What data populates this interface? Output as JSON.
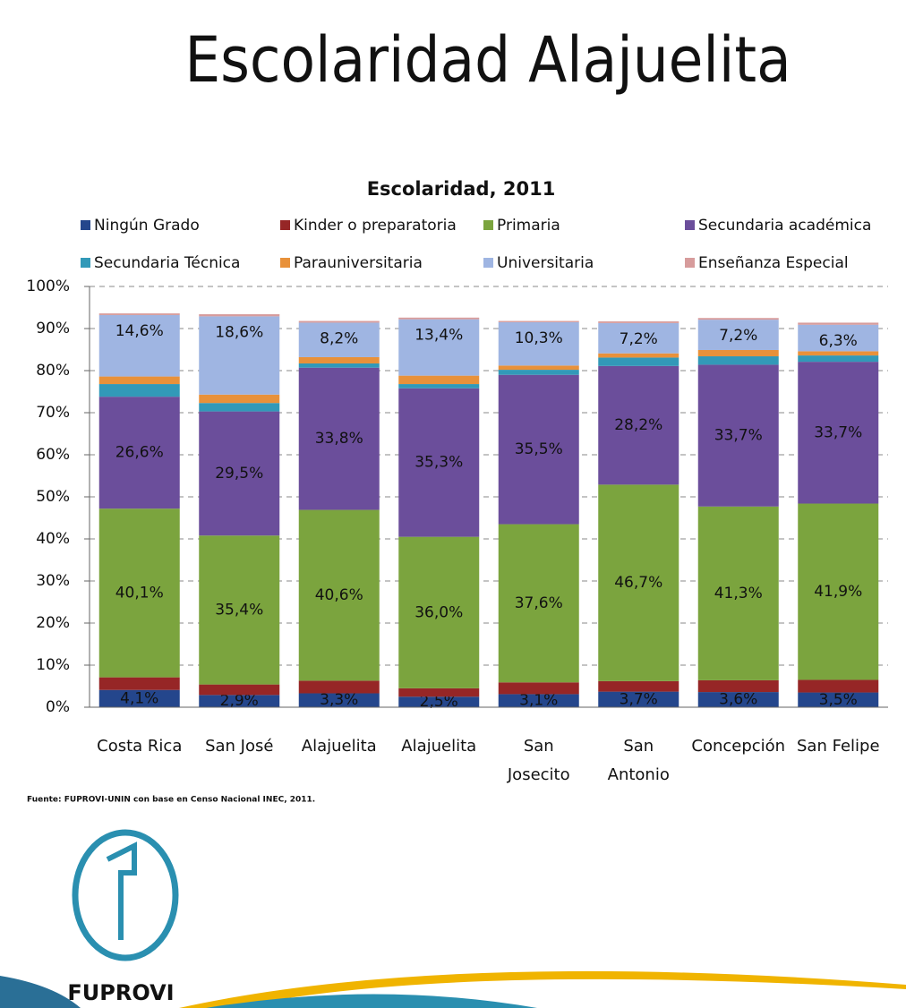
{
  "slide_title": "Escolaridad Alajuelita",
  "source": "Fuente: FUPROVI-UNIN con base en Censo Nacional INEC, 2011.",
  "logo_text": "FUPROVI",
  "chart_data": {
    "type": "stacked_bar",
    "title": "Escolaridad, 2011",
    "categories": [
      "Costa Rica",
      "San José",
      "Alajuelita",
      "Alajuelita",
      "San\nJosecito",
      "San\nAntonio",
      "Concepción",
      "San Felipe"
    ],
    "ylim": [
      0,
      100
    ],
    "yticks": [
      {
        "value": 0,
        "label": "0%"
      },
      {
        "value": 10,
        "label": "10%"
      },
      {
        "value": 20,
        "label": "20%"
      },
      {
        "value": 30,
        "label": "30%"
      },
      {
        "value": 40,
        "label": "40%"
      },
      {
        "value": 50,
        "label": "50%"
      },
      {
        "value": 60,
        "label": "60%"
      },
      {
        "value": 70,
        "label": "70%"
      },
      {
        "value": 80,
        "label": "80%"
      },
      {
        "value": 90,
        "label": "90%"
      },
      {
        "value": 100,
        "label": "100%"
      }
    ],
    "grid": true,
    "series": [
      {
        "name": "Ningún Grado",
        "color": "#24468c",
        "values": [
          4.1,
          2.9,
          3.3,
          2.5,
          3.1,
          3.7,
          3.6,
          3.5
        ],
        "value_labels": [
          "4,1%",
          "2,9%",
          "3,3%",
          "2,5%",
          "3,1%",
          "3,7%",
          "3,6%",
          "3,5%"
        ]
      },
      {
        "name": "Kinder o preparatoria",
        "color": "#962626",
        "values": [
          3.0,
          2.5,
          3.0,
          2.0,
          2.8,
          2.5,
          2.8,
          3.0
        ]
      },
      {
        "name": "Primaria",
        "color": "#7ba43e",
        "values": [
          40.1,
          35.4,
          40.6,
          36.0,
          37.6,
          46.7,
          41.3,
          41.9
        ],
        "value_labels": [
          "40,1%",
          "35,4%",
          "40,6%",
          "36,0%",
          "37,6%",
          "46,7%",
          "41,3%",
          "41,9%"
        ]
      },
      {
        "name": "Secundaria académica",
        "color": "#6b4e9b",
        "values": [
          26.6,
          29.5,
          33.8,
          35.3,
          35.5,
          28.2,
          33.7,
          33.7
        ],
        "value_labels": [
          "26,6%",
          "29,5%",
          "33,8%",
          "35,3%",
          "35,5%",
          "28,2%",
          "33,7%",
          "33,7%"
        ]
      },
      {
        "name": "Secundaria Técnica",
        "color": "#3299b8",
        "values": [
          3.0,
          2.0,
          1.0,
          1.0,
          1.2,
          2.0,
          2.0,
          1.5
        ]
      },
      {
        "name": "Parauniversitaria",
        "color": "#e8913a",
        "values": [
          1.8,
          2.0,
          1.5,
          2.0,
          1.0,
          1.0,
          1.5,
          1.0
        ]
      },
      {
        "name": "Universitaria",
        "color": "#9fb5e2",
        "values": [
          14.6,
          18.6,
          8.2,
          13.4,
          10.3,
          7.2,
          7.2,
          6.3
        ],
        "value_labels": [
          "14,6%",
          "18,6%",
          "8,2%",
          "13,4%",
          "10,3%",
          "7,2%",
          "7,2%",
          "6,3%"
        ]
      },
      {
        "name": "Enseñanza Especial",
        "color": "#d79c9c",
        "values": [
          0.4,
          0.5,
          0.4,
          0.4,
          0.3,
          0.4,
          0.4,
          0.5
        ]
      }
    ],
    "legend": "top"
  }
}
